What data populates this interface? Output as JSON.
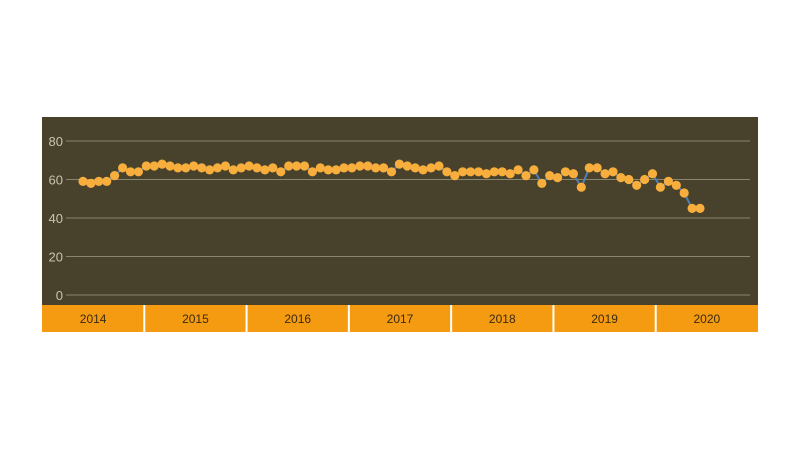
{
  "chart_data": {
    "type": "line",
    "title": "",
    "xlabel": "",
    "ylabel": "",
    "ylim": [
      0,
      80
    ],
    "y_ticks": [
      "0",
      "20",
      "40",
      "60",
      "80"
    ],
    "grid": true,
    "legend": "none",
    "year_labels": [
      "2014",
      "2015",
      "2016",
      "2017",
      "2018",
      "2019",
      "2020"
    ],
    "series": [
      {
        "values": [
          59,
          58,
          59,
          59,
          62,
          66,
          64,
          64,
          67,
          67,
          68,
          67,
          66,
          66,
          67,
          66,
          65,
          66,
          67,
          65,
          66,
          67,
          66,
          65,
          66,
          64,
          67,
          67,
          67,
          64,
          66,
          65,
          65,
          66,
          66,
          67,
          67,
          66,
          66,
          64,
          68,
          67,
          66,
          65,
          66,
          67,
          64,
          62,
          64,
          64,
          64,
          63,
          64,
          64,
          63,
          65,
          62,
          65,
          58,
          62,
          61,
          64,
          63,
          56,
          66,
          66,
          63,
          64,
          61,
          60,
          57,
          60,
          63,
          56,
          59,
          57,
          53,
          45,
          45
        ]
      }
    ]
  },
  "colors": {
    "plot_bg": "#48412b",
    "grid": "#8a856f",
    "tick_text": "#c9c4ac",
    "band_bg": "#f59b12",
    "band_divider": "#ffffff",
    "band_text": "#3a2a10",
    "marker": "#f8ae3c",
    "line": "#4f7fb4"
  }
}
